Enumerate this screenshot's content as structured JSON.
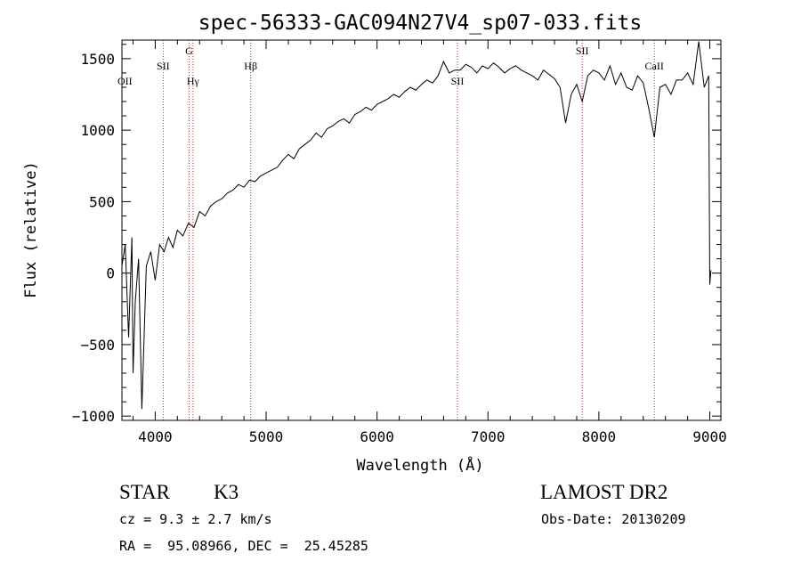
{
  "chart_data": {
    "type": "line",
    "title": "spec-56333-GAC094N27V4_sp07-033.fits",
    "xlabel": "Wavelength (Å)",
    "ylabel": "Flux (relative)",
    "xlim": [
      3700,
      9100
    ],
    "ylim": [
      -1030,
      1630
    ],
    "xticks": [
      4000,
      5000,
      6000,
      7000,
      8000,
      9000
    ],
    "yticks": [
      -1000,
      -500,
      0,
      500,
      1000,
      1500
    ],
    "grid": false,
    "series": [
      {
        "values_x": [
          3700,
          3730,
          3760,
          3790,
          3800,
          3820,
          3850,
          3880,
          3920,
          3960,
          4000,
          4040,
          4080,
          4120,
          4160,
          4200,
          4250,
          4300,
          4350,
          4400,
          4450,
          4500,
          4550,
          4600,
          4650,
          4700,
          4750,
          4800,
          4850,
          4900,
          4950,
          5000,
          5050,
          5100,
          5150,
          5200,
          5250,
          5300,
          5350,
          5400,
          5450,
          5500,
          5550,
          5600,
          5650,
          5700,
          5750,
          5800,
          5850,
          5900,
          5950,
          6000,
          6050,
          6100,
          6150,
          6200,
          6250,
          6300,
          6350,
          6400,
          6450,
          6500,
          6550,
          6600,
          6650,
          6700,
          6750,
          6800,
          6850,
          6900,
          6950,
          7000,
          7050,
          7100,
          7150,
          7200,
          7250,
          7300,
          7350,
          7400,
          7450,
          7500,
          7550,
          7600,
          7650,
          7700,
          7750,
          7800,
          7850,
          7900,
          7950,
          8000,
          8050,
          8100,
          8150,
          8200,
          8250,
          8300,
          8350,
          8400,
          8450,
          8500,
          8550,
          8600,
          8650,
          8700,
          8750,
          8800,
          8850,
          8900,
          8950,
          8990,
          9000,
          9010
        ],
        "values_y": [
          50,
          200,
          -450,
          250,
          -700,
          -200,
          100,
          -950,
          50,
          150,
          -50,
          200,
          150,
          250,
          180,
          300,
          260,
          350,
          320,
          430,
          400,
          470,
          500,
          520,
          560,
          580,
          620,
          600,
          650,
          640,
          680,
          700,
          720,
          740,
          790,
          830,
          800,
          870,
          900,
          930,
          980,
          950,
          1010,
          1030,
          1060,
          1080,
          1050,
          1110,
          1130,
          1160,
          1140,
          1180,
          1200,
          1220,
          1250,
          1230,
          1270,
          1300,
          1280,
          1320,
          1350,
          1330,
          1380,
          1480,
          1400,
          1420,
          1420,
          1460,
          1440,
          1400,
          1450,
          1430,
          1470,
          1440,
          1400,
          1430,
          1450,
          1420,
          1400,
          1380,
          1350,
          1420,
          1390,
          1360,
          1300,
          1050,
          1250,
          1320,
          1200,
          1380,
          1420,
          1400,
          1350,
          1450,
          1320,
          1400,
          1300,
          1280,
          1380,
          1330,
          1150,
          950,
          1300,
          1320,
          1250,
          1350,
          1350,
          1400,
          1320,
          1620,
          1300,
          1380,
          -80,
          20
        ]
      }
    ],
    "line_marks": [
      {
        "label": "OII",
        "x": 3727,
        "dotted": false,
        "label_row": 2
      },
      {
        "label": "SII",
        "x": 4072,
        "dotted": true,
        "label_row": 1
      },
      {
        "label": "G",
        "x": 4305,
        "dotted": true,
        "label_row": 0
      },
      {
        "label": "Hγ",
        "x": 4341,
        "dotted": true,
        "label_row": 2
      },
      {
        "label": "Hβ",
        "x": 4861,
        "dotted": true,
        "label_row": 1
      },
      {
        "label": "SII",
        "x": 6725,
        "dotted": true,
        "label_row": 2
      },
      {
        "label": "SII",
        "x": 7850,
        "dotted": true,
        "label_row": 0
      },
      {
        "label": "CaII",
        "x": 8500,
        "dotted": true,
        "label_row": 1
      }
    ]
  },
  "info": {
    "class_label": "STAR",
    "subclass": "K3",
    "survey": "LAMOST DR2",
    "redshift": "cz = 9.3 ± 2.7 km/s",
    "obs_date": "Obs-Date: 20130209",
    "coords": "RA =  95.08966, DEC =  25.45285"
  }
}
